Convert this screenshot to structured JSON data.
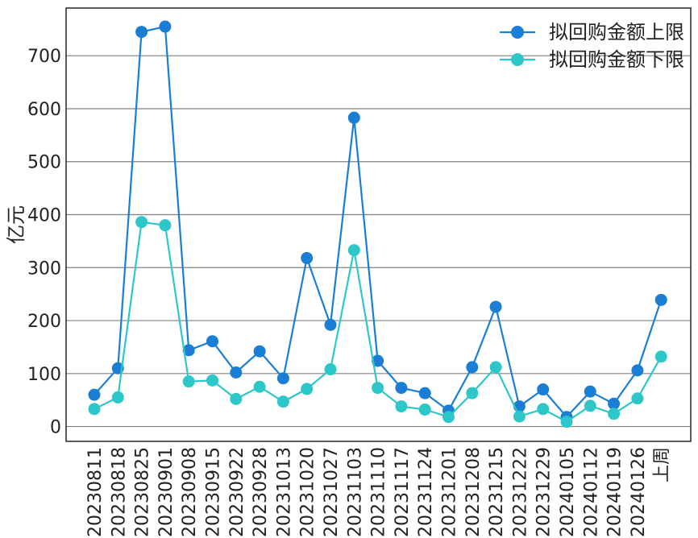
{
  "chart_data": {
    "type": "line",
    "ylabel": "亿元",
    "ylim": [
      -28,
      790
    ],
    "yticks": [
      0,
      100,
      200,
      300,
      400,
      500,
      600,
      700
    ],
    "grid": "y",
    "legend_position": "top-right",
    "categories": [
      "20230811",
      "20230818",
      "20230825",
      "20230901",
      "20230908",
      "20230915",
      "20230922",
      "20230928",
      "20231013",
      "20231020",
      "20231027",
      "20231103",
      "20231110",
      "20231117",
      "20231124",
      "20231201",
      "20231208",
      "20231215",
      "20231222",
      "20231229",
      "20240105",
      "20240112",
      "20240119",
      "20240126",
      "上周"
    ],
    "series": [
      {
        "name": "拟回购金额上限",
        "color": "#1a7fd4",
        "values": [
          60,
          110,
          745,
          755,
          144,
          161,
          102,
          142,
          91,
          318,
          192,
          583,
          124,
          73,
          63,
          30,
          112,
          226,
          38,
          70,
          18,
          66,
          43,
          106,
          239
        ]
      },
      {
        "name": "拟回购金额下限",
        "color": "#2ec7c9",
        "values": [
          33,
          55,
          386,
          380,
          85,
          87,
          52,
          75,
          47,
          71,
          108,
          333,
          73,
          38,
          32,
          18,
          63,
          112,
          19,
          33,
          9,
          39,
          24,
          53,
          132
        ]
      }
    ]
  }
}
